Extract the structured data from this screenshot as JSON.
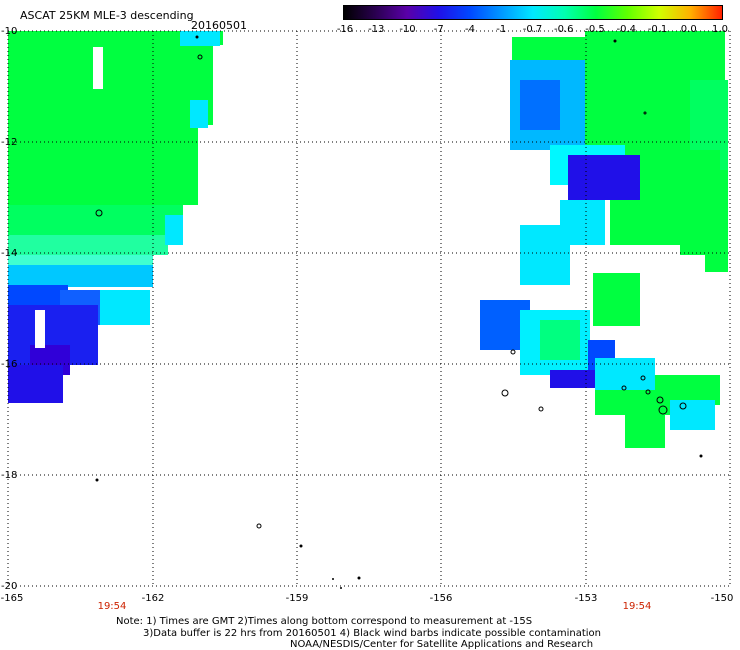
{
  "header": {
    "title": "ASCAT 25KM MLE-3 descending",
    "date": "20160501"
  },
  "colorbar": {
    "labels": [
      "-16",
      "-13",
      "-10",
      "-7",
      "-4",
      "-1",
      "-0.7",
      "-0.6",
      "-0.5",
      "-0.4",
      "-0.1",
      "0.0",
      "1.0"
    ],
    "colors": [
      "#000000",
      "#2a0050",
      "#5a00a8",
      "#2010e8",
      "#0048ff",
      "#0098ff",
      "#00e8ff",
      "#00ffb0",
      "#00ff40",
      "#60ff00",
      "#d0ff00",
      "#ffb000",
      "#ff2000"
    ]
  },
  "axes": {
    "lat_labels": [
      "-10",
      "-12",
      "-14",
      "-16",
      "-18",
      "-20"
    ],
    "lon_labels": [
      "-165",
      "-162",
      "-159",
      "-156",
      "-153",
      "-150"
    ]
  },
  "time_labels": [
    "19:54",
    "19:54"
  ],
  "notes": {
    "line1": "Note: 1) Times are GMT 2)Times along bottom correspond to measurement at -15S",
    "line2": "3)Data buffer is 22 hrs from 20160501 4) Black wind barbs indicate possible contamination",
    "line3": "NOAA/NESDIS/Center for Satellite Applications and Research"
  }
}
